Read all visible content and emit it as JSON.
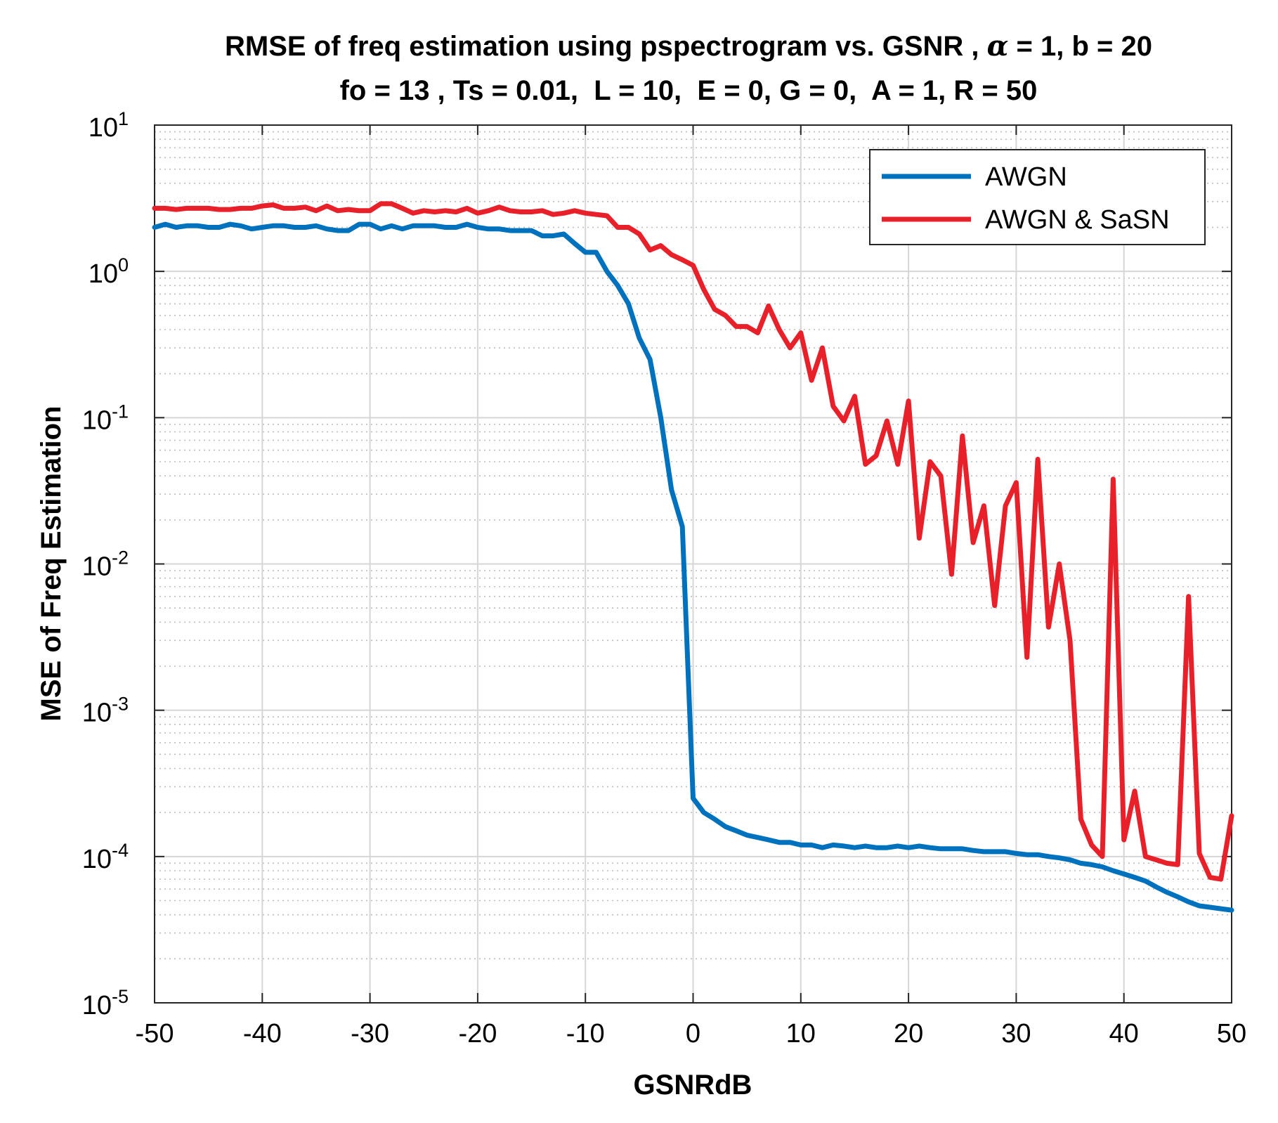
{
  "chart_data": {
    "type": "line",
    "title_line1_prefix": "RMSE of freq estimation using pspectrogram vs. GSNR ,",
    "title_alpha": "α",
    "title_line1_suffix": "= 1, b = 20",
    "title_line2": "fo = 13 , Ts = 0.01,  L = 10,  E = 0, G = 0,  A = 1, R = 50",
    "xlabel": "GSNRdB",
    "ylabel": "MSE of Freq Estimation",
    "xlim": [
      -50,
      50
    ],
    "ylim_exponents": [
      -5,
      1
    ],
    "yscale": "log",
    "grid": true,
    "minor_grid": true,
    "legend_position": "top-right",
    "x_ticks": [
      "-50",
      "-40",
      "-30",
      "-20",
      "-10",
      "0",
      "10",
      "20",
      "30",
      "40",
      "50"
    ],
    "y_ticks": [
      {
        "base": "10",
        "exp": "1"
      },
      {
        "base": "10",
        "exp": "0"
      },
      {
        "base": "10",
        "exp": "-1"
      },
      {
        "base": "10",
        "exp": "-2"
      },
      {
        "base": "10",
        "exp": "-3"
      },
      {
        "base": "10",
        "exp": "-4"
      },
      {
        "base": "10",
        "exp": "-5"
      }
    ],
    "x": [
      -50,
      -49,
      -48,
      -47,
      -46,
      -45,
      -44,
      -43,
      -42,
      -41,
      -40,
      -39,
      -38,
      -37,
      -36,
      -35,
      -34,
      -33,
      -32,
      -31,
      -30,
      -29,
      -28,
      -27,
      -26,
      -25,
      -24,
      -23,
      -22,
      -21,
      -20,
      -19,
      -18,
      -17,
      -16,
      -15,
      -14,
      -13,
      -12,
      -11,
      -10,
      -9,
      -8,
      -7,
      -6,
      -5,
      -4,
      -3,
      -2,
      -1,
      0,
      1,
      2,
      3,
      4,
      5,
      6,
      7,
      8,
      9,
      10,
      11,
      12,
      13,
      14,
      15,
      16,
      17,
      18,
      19,
      20,
      21,
      22,
      23,
      24,
      25,
      26,
      27,
      28,
      29,
      30,
      31,
      32,
      33,
      34,
      35,
      36,
      37,
      38,
      39,
      40,
      41,
      42,
      43,
      44,
      45,
      46,
      47,
      48,
      49,
      50
    ],
    "series": [
      {
        "name": "AWGN",
        "color": "#0072BD",
        "values": [
          2.0,
          2.1,
          2.0,
          2.05,
          2.05,
          2.0,
          2.0,
          2.1,
          2.05,
          1.95,
          2.0,
          2.05,
          2.05,
          2.0,
          2.0,
          2.05,
          1.95,
          1.9,
          1.9,
          2.1,
          2.1,
          1.95,
          2.05,
          1.95,
          2.05,
          2.05,
          2.05,
          2.0,
          2.0,
          2.1,
          2.0,
          1.95,
          1.95,
          1.9,
          1.9,
          1.9,
          1.75,
          1.75,
          1.8,
          1.55,
          1.35,
          1.35,
          1.0,
          0.8,
          0.6,
          0.35,
          0.25,
          0.1,
          0.032,
          0.018,
          0.00025,
          0.0002,
          0.00018,
          0.00016,
          0.00015,
          0.00014,
          0.000135,
          0.00013,
          0.000125,
          0.000125,
          0.00012,
          0.00012,
          0.000115,
          0.00012,
          0.000118,
          0.000115,
          0.000118,
          0.000115,
          0.000115,
          0.000118,
          0.000115,
          0.000118,
          0.000115,
          0.000113,
          0.000113,
          0.000113,
          0.00011,
          0.000108,
          0.000108,
          0.000108,
          0.000105,
          0.000103,
          0.000103,
          0.0001,
          9.8e-05,
          9.5e-05,
          9e-05,
          8.8e-05,
          8.5e-05,
          8e-05,
          7.6e-05,
          7.2e-05,
          6.8e-05,
          6.2e-05,
          5.7e-05,
          5.3e-05,
          4.9e-05,
          4.6e-05,
          4.5e-05,
          4.4e-05,
          4.3e-05
        ]
      },
      {
        "name": "AWGN & SaSN",
        "color": "#E8202A",
        "values": [
          2.7,
          2.7,
          2.65,
          2.7,
          2.7,
          2.7,
          2.65,
          2.65,
          2.7,
          2.7,
          2.8,
          2.85,
          2.7,
          2.7,
          2.75,
          2.6,
          2.8,
          2.6,
          2.65,
          2.6,
          2.6,
          2.9,
          2.9,
          2.7,
          2.5,
          2.6,
          2.55,
          2.6,
          2.55,
          2.7,
          2.5,
          2.6,
          2.75,
          2.6,
          2.55,
          2.55,
          2.6,
          2.45,
          2.5,
          2.6,
          2.5,
          2.45,
          2.4,
          2.0,
          2.0,
          1.8,
          1.4,
          1.5,
          1.3,
          1.2,
          1.1,
          0.75,
          0.55,
          0.5,
          0.42,
          0.42,
          0.38,
          0.58,
          0.4,
          0.3,
          0.38,
          0.18,
          0.3,
          0.12,
          0.095,
          0.14,
          0.048,
          0.055,
          0.095,
          0.048,
          0.13,
          0.015,
          0.05,
          0.04,
          0.0085,
          0.075,
          0.014,
          0.025,
          0.0052,
          0.025,
          0.036,
          0.0023,
          0.052,
          0.0037,
          0.01,
          0.003,
          0.00018,
          0.00012,
          0.0001,
          0.038,
          0.00013,
          0.00028,
          0.0001,
          9.5e-05,
          9e-05,
          8.8e-05,
          0.006,
          0.000105,
          7.2e-05,
          7e-05,
          0.00019
        ]
      }
    ]
  }
}
